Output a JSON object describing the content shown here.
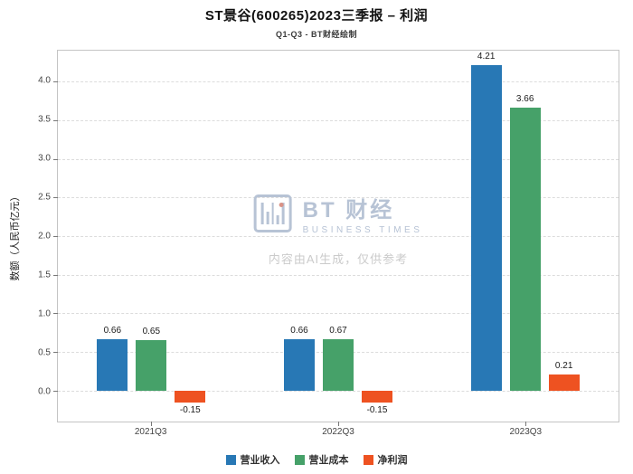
{
  "title": "ST景谷(600265)2023三季报 – 利润",
  "subtitle": "Q1-Q3 - BT财经绘制",
  "watermark": {
    "brand": "BT 财经",
    "brand_sub": "BUSINESS TIMES",
    "disclaimer": "内容由AI生成，仅供参考"
  },
  "chart_data": {
    "type": "bar",
    "title": "ST景谷(600265)2023三季报 – 利润",
    "subtitle": "Q1-Q3 - BT财经绘制",
    "categories": [
      "2021Q3",
      "2022Q3",
      "2023Q3"
    ],
    "series": [
      {
        "name": "营业收入",
        "color": "#2878b5",
        "values": [
          0.66,
          0.66,
          4.21
        ]
      },
      {
        "name": "营业成本",
        "color": "#46a169",
        "values": [
          0.65,
          0.67,
          3.66
        ]
      },
      {
        "name": "净利润",
        "color": "#ee5221",
        "values": [
          -0.15,
          -0.15,
          0.21
        ]
      }
    ],
    "xlabel": "",
    "ylabel": "数额（人民币亿元）",
    "ylim": [
      -0.4,
      4.4
    ],
    "yticks": [
      0.0,
      0.5,
      1.0,
      1.5,
      2.0,
      2.5,
      3.0,
      3.5,
      4.0
    ],
    "grid": true,
    "gridline_style": "dashed",
    "legend_position": "bottom"
  }
}
